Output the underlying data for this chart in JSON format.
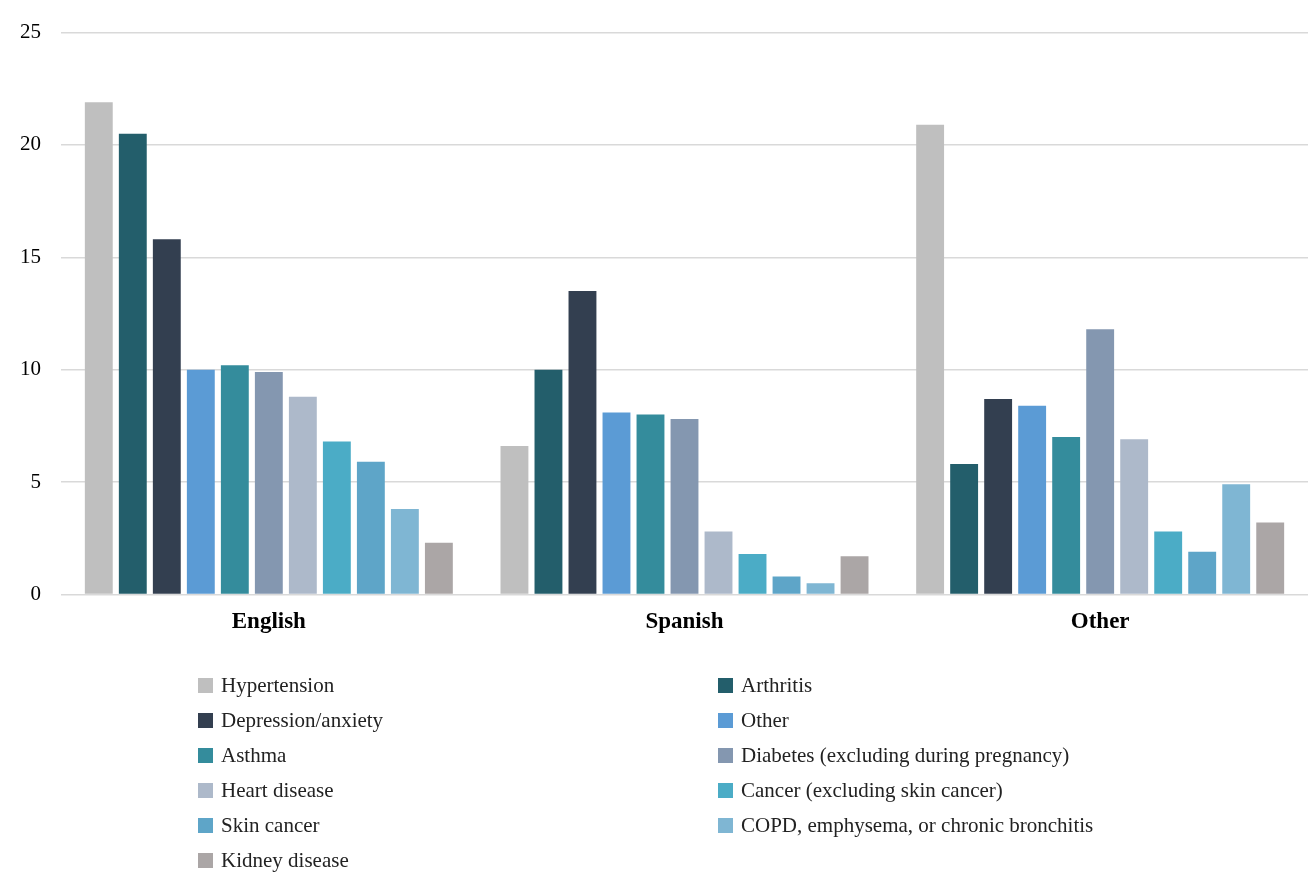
{
  "chart_data": {
    "type": "bar",
    "categories": [
      "English",
      "Spanish",
      "Other"
    ],
    "series": [
      {
        "name": "Hypertension",
        "color": "#bfbfbf",
        "values": [
          21.9,
          6.6,
          20.9
        ]
      },
      {
        "name": "Arthritis",
        "color": "#235e6b",
        "values": [
          20.5,
          10.0,
          5.8
        ]
      },
      {
        "name": "Depression/anxiety",
        "color": "#333f50",
        "values": [
          15.8,
          13.5,
          8.7
        ]
      },
      {
        "name": "Other",
        "color": "#5b9bd5",
        "values": [
          10.0,
          8.1,
          8.4
        ]
      },
      {
        "name": "Asthma",
        "color": "#348c9c",
        "values": [
          10.2,
          8.0,
          7.0
        ]
      },
      {
        "name": "Diabetes (excluding during pregnancy)",
        "color": "#8497b0",
        "values": [
          9.9,
          7.8,
          11.8
        ]
      },
      {
        "name": "Heart disease",
        "color": "#adb9ca",
        "values": [
          8.8,
          2.8,
          6.9
        ]
      },
      {
        "name": "Cancer (excluding skin cancer)",
        "color": "#4bacc6",
        "values": [
          6.8,
          1.8,
          2.8
        ]
      },
      {
        "name": "Skin cancer",
        "color": "#5ea5c8",
        "values": [
          5.9,
          0.8,
          1.9
        ]
      },
      {
        "name": "COPD, emphysema, or chronic bronchitis",
        "color": "#7fb6d3",
        "values": [
          3.8,
          0.5,
          4.9
        ]
      },
      {
        "name": "Kidney disease",
        "color": "#aba6a6",
        "values": [
          2.3,
          1.7,
          3.2
        ]
      }
    ],
    "ylim": [
      0,
      25
    ],
    "yticks": [
      0,
      5,
      10,
      15,
      20,
      25
    ],
    "grid": "y",
    "legend": "bottom"
  }
}
